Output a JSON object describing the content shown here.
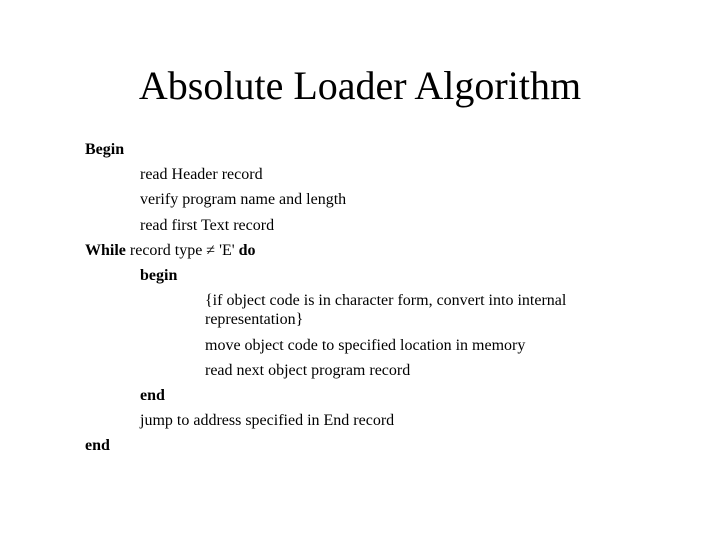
{
  "title": "Absolute Loader Algorithm",
  "lines": {
    "begin": "Begin",
    "readHeader": "read Header record",
    "verify": "verify program name and length",
    "readFirst": "read first Text record",
    "whilePre": "While",
    "whileCond": " record type ≠ 'E' ",
    "do": "do",
    "innerBegin": "begin",
    "ifNote": " {if object code is in character form, convert into internal representation}",
    "move": "move object code to specified location in memory",
    "readNext": "read next object program record",
    "innerEnd": "end",
    "jump": "jump to address specified in End record",
    "end": "end"
  }
}
